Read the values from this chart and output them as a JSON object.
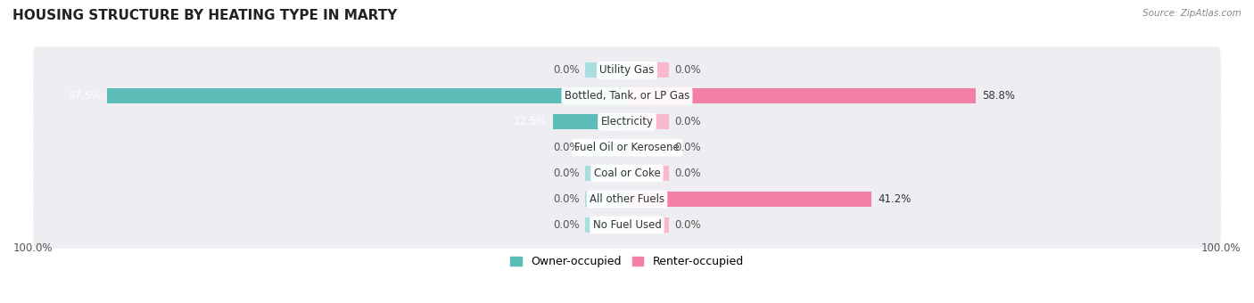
{
  "title": "HOUSING STRUCTURE BY HEATING TYPE IN MARTY",
  "source": "Source: ZipAtlas.com",
  "categories": [
    "Utility Gas",
    "Bottled, Tank, or LP Gas",
    "Electricity",
    "Fuel Oil or Kerosene",
    "Coal or Coke",
    "All other Fuels",
    "No Fuel Used"
  ],
  "owner_values": [
    0.0,
    87.5,
    12.5,
    0.0,
    0.0,
    0.0,
    0.0
  ],
  "renter_values": [
    0.0,
    58.8,
    0.0,
    0.0,
    0.0,
    41.2,
    0.0
  ],
  "owner_color": "#5bbcb8",
  "renter_color": "#f47fa4",
  "owner_color_light": "#a8dedd",
  "renter_color_light": "#f9b8ce",
  "owner_label": "Owner-occupied",
  "renter_label": "Renter-occupied",
  "bg_color": "#ffffff",
  "row_bg_color": "#ededf2",
  "xlim": 100,
  "title_fontsize": 11,
  "val_fontsize": 8.5,
  "cat_fontsize": 8.5,
  "zero_stub": 7.0,
  "axis_label_left": "100.0%",
  "axis_label_right": "100.0%"
}
